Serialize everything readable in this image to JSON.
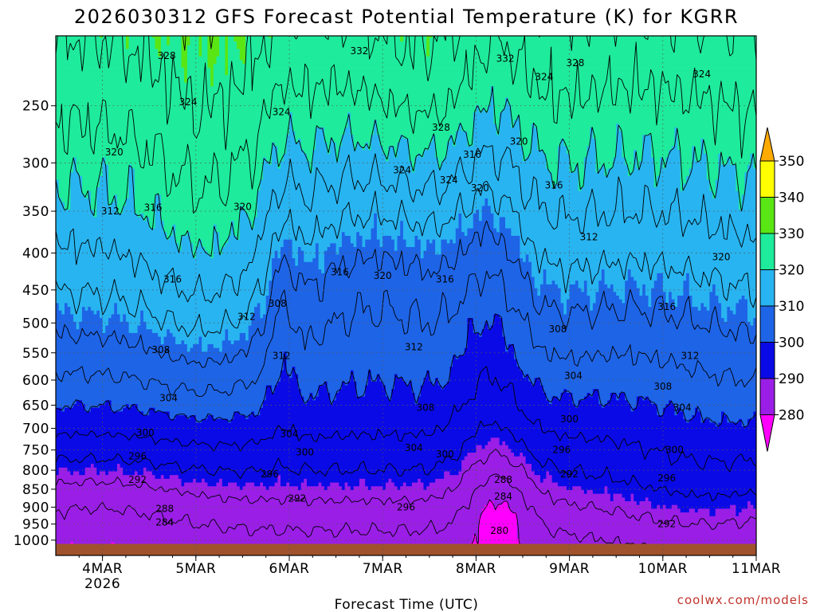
{
  "chart_data": {
    "type": "contour",
    "title": "2026030312 GFS Forecast Potential Temperature (K) for KGRR",
    "xlabel": "Forecast Time (UTC)",
    "ylabel": "",
    "x_ticks": [
      {
        "label": "4MAR",
        "sub": "2026",
        "t": 12
      },
      {
        "label": "5MAR",
        "sub": "",
        "t": 36
      },
      {
        "label": "6MAR",
        "sub": "",
        "t": 60
      },
      {
        "label": "7MAR",
        "sub": "",
        "t": 84
      },
      {
        "label": "8MAR",
        "sub": "",
        "t": 108
      },
      {
        "label": "9MAR",
        "sub": "",
        "t": 132
      },
      {
        "label": "10MAR",
        "sub": "",
        "t": 156
      },
      {
        "label": "11MAR",
        "sub": "",
        "t": 180
      }
    ],
    "y_ticks": [
      250,
      300,
      350,
      400,
      450,
      500,
      550,
      600,
      650,
      700,
      750,
      800,
      850,
      900,
      950,
      1000
    ],
    "xlim_hours": [
      0,
      180
    ],
    "ylim_hpa": [
      200,
      1050
    ],
    "y_scale": "log",
    "colorbar": {
      "levels": [
        280,
        290,
        300,
        310,
        320,
        330,
        340,
        350
      ],
      "colors": [
        "#ff00ff",
        "#9a1ee6",
        "#0a0ae6",
        "#1e64e6",
        "#28b4f0",
        "#1eeb9b",
        "#5ae614",
        "#ffff00",
        "#ffaa00"
      ]
    },
    "terrain_color": "#a0522d",
    "contour_interval": 4,
    "contour_labels": [
      {
        "value": "328",
        "t": 28.5,
        "p": 213
      },
      {
        "value": "332",
        "t": 78,
        "p": 210
      },
      {
        "value": "332",
        "t": 115.5,
        "p": 215
      },
      {
        "value": "328",
        "t": 133.5,
        "p": 218
      },
      {
        "value": "324",
        "t": 125.5,
        "p": 228
      },
      {
        "value": "324",
        "t": 166,
        "p": 226
      },
      {
        "value": "324",
        "t": 34,
        "p": 247
      },
      {
        "value": "324",
        "t": 58,
        "p": 255
      },
      {
        "value": "328",
        "t": 99,
        "p": 268
      },
      {
        "value": "320",
        "t": 119,
        "p": 280
      },
      {
        "value": "320",
        "t": 15,
        "p": 290
      },
      {
        "value": "316",
        "t": 107,
        "p": 292
      },
      {
        "value": "324",
        "t": 89,
        "p": 307
      },
      {
        "value": "324",
        "t": 101,
        "p": 317
      },
      {
        "value": "320",
        "t": 109,
        "p": 325
      },
      {
        "value": "316",
        "t": 128,
        "p": 322
      },
      {
        "value": "316",
        "t": 25,
        "p": 346
      },
      {
        "value": "320",
        "t": 48,
        "p": 345
      },
      {
        "value": "312",
        "t": 14,
        "p": 350
      },
      {
        "value": "312",
        "t": 137,
        "p": 380
      },
      {
        "value": "320",
        "t": 171,
        "p": 405
      },
      {
        "value": "316",
        "t": 30,
        "p": 435
      },
      {
        "value": "316",
        "t": 73,
        "p": 425
      },
      {
        "value": "320",
        "t": 84,
        "p": 430
      },
      {
        "value": "316",
        "t": 100,
        "p": 435
      },
      {
        "value": "308",
        "t": 57,
        "p": 470
      },
      {
        "value": "312",
        "t": 49,
        "p": 490
      },
      {
        "value": "316",
        "t": 157,
        "p": 475
      },
      {
        "value": "308",
        "t": 129,
        "p": 510
      },
      {
        "value": "308",
        "t": 27,
        "p": 545
      },
      {
        "value": "312",
        "t": 58,
        "p": 555
      },
      {
        "value": "312",
        "t": 92,
        "p": 540
      },
      {
        "value": "312",
        "t": 163,
        "p": 555
      },
      {
        "value": "304",
        "t": 133,
        "p": 592
      },
      {
        "value": "308",
        "t": 156,
        "p": 612
      },
      {
        "value": "304",
        "t": 29,
        "p": 635
      },
      {
        "value": "308",
        "t": 95,
        "p": 655
      },
      {
        "value": "304",
        "t": 161,
        "p": 655
      },
      {
        "value": "300",
        "t": 132,
        "p": 680
      },
      {
        "value": "304",
        "t": 60,
        "p": 712
      },
      {
        "value": "300",
        "t": 23,
        "p": 710
      },
      {
        "value": "304",
        "t": 92,
        "p": 745
      },
      {
        "value": "300",
        "t": 64,
        "p": 755
      },
      {
        "value": "296",
        "t": 130,
        "p": 750
      },
      {
        "value": "300",
        "t": 159,
        "p": 750
      },
      {
        "value": "300",
        "t": 100,
        "p": 760
      },
      {
        "value": "296",
        "t": 21,
        "p": 765
      },
      {
        "value": "296",
        "t": 55,
        "p": 810
      },
      {
        "value": "292",
        "t": 132,
        "p": 810
      },
      {
        "value": "296",
        "t": 157,
        "p": 820
      },
      {
        "value": "292",
        "t": 21,
        "p": 825
      },
      {
        "value": "288",
        "t": 115,
        "p": 825
      },
      {
        "value": "292",
        "t": 62,
        "p": 875
      },
      {
        "value": "284",
        "t": 115,
        "p": 870
      },
      {
        "value": "296",
        "t": 90,
        "p": 900
      },
      {
        "value": "288",
        "t": 28,
        "p": 905
      },
      {
        "value": "284",
        "t": 28,
        "p": 945
      },
      {
        "value": "292",
        "t": 157,
        "p": 950
      },
      {
        "value": "280",
        "t": 114,
        "p": 970
      }
    ],
    "credit": "coolwx.com/models"
  }
}
